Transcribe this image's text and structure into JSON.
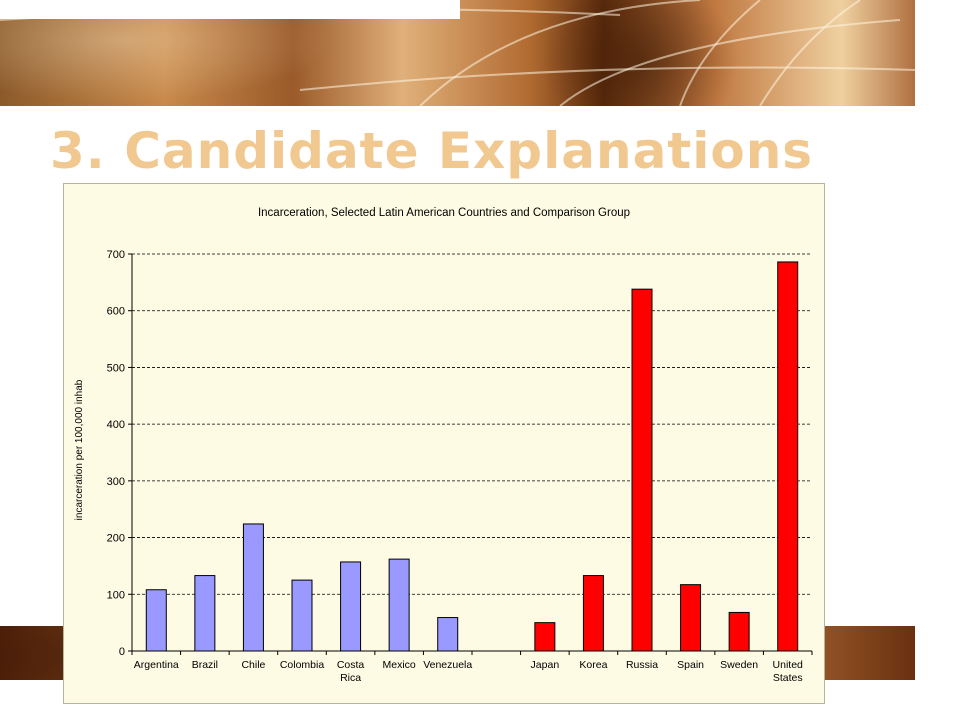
{
  "slide": {
    "title": "3. Candidate Explanations"
  },
  "chart_data": {
    "type": "bar",
    "title": "Incarceration, Selected Latin American Countries and Comparison Group",
    "xlabel": "",
    "ylabel": "incarceration per 100,000 inhab",
    "ylim": [
      0,
      700
    ],
    "yticks": [
      0,
      100,
      200,
      300,
      400,
      500,
      600,
      700
    ],
    "grid": true,
    "categories": [
      "Argentina",
      "Brazil",
      "Chile",
      "Colombia",
      "Costa Rica",
      "Mexico",
      "Venezuela",
      "",
      "Japan",
      "Korea",
      "Russia",
      "Spain",
      "Sweden",
      "United States"
    ],
    "category_lines": [
      [
        "Argentina"
      ],
      [
        "Brazil"
      ],
      [
        "Chile"
      ],
      [
        "Colombia"
      ],
      [
        "Costa",
        "Rica"
      ],
      [
        "Mexico"
      ],
      [
        "Venezuela"
      ],
      [],
      [
        "Japan"
      ],
      [
        "Korea"
      ],
      [
        "Russia"
      ],
      [
        "Spain"
      ],
      [
        "Sweden"
      ],
      [
        "United",
        "States"
      ]
    ],
    "values": [
      108,
      133,
      224,
      125,
      157,
      162,
      59,
      null,
      50,
      133,
      638,
      117,
      68,
      686
    ],
    "groups": [
      "latin",
      "latin",
      "latin",
      "latin",
      "latin",
      "latin",
      "latin",
      "gap",
      "comparison",
      "comparison",
      "comparison",
      "comparison",
      "comparison",
      "comparison"
    ],
    "colors": {
      "latin": "#9999ff",
      "comparison": "#ff0000",
      "background": "#fdfbe3",
      "title": "#f0c890"
    }
  }
}
